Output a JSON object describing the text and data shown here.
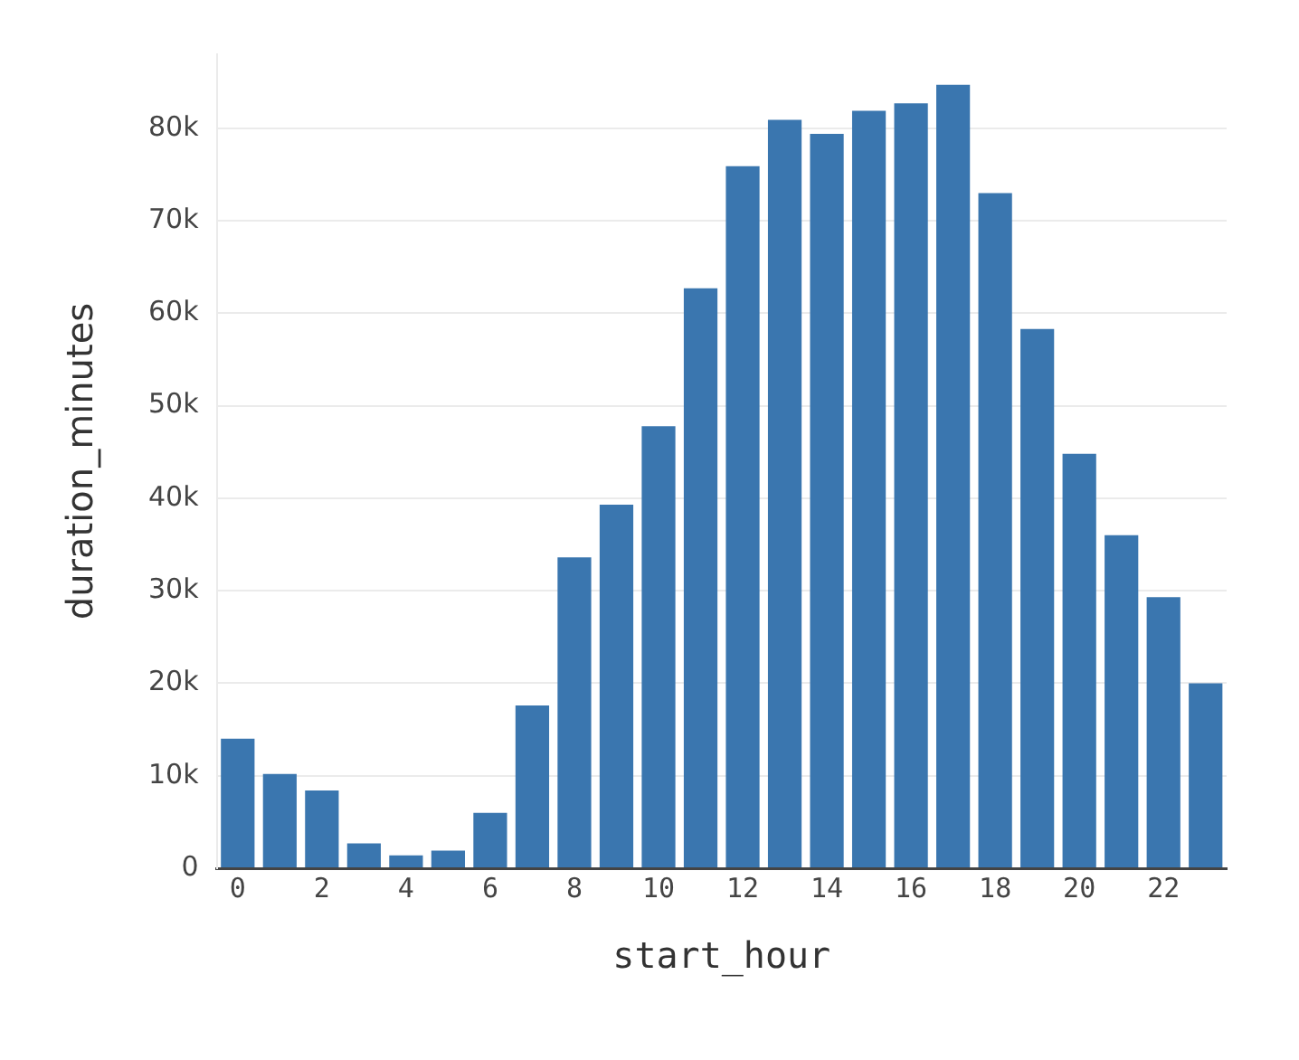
{
  "chart_data": {
    "type": "bar",
    "xlabel": "start_hour",
    "ylabel": "duration_minutes",
    "color": "#3a76af",
    "x": [
      0,
      1,
      2,
      3,
      4,
      5,
      6,
      7,
      8,
      9,
      10,
      11,
      12,
      13,
      14,
      15,
      16,
      17,
      18,
      19,
      20,
      21,
      22,
      23
    ],
    "values": [
      14000,
      10200,
      8400,
      2700,
      1400,
      1900,
      6000,
      17600,
      33600,
      39300,
      47800,
      62700,
      75900,
      80900,
      79400,
      81900,
      82700,
      84700,
      73000,
      58300,
      44800,
      36000,
      29300,
      20000
    ],
    "xlim": [
      -0.5,
      23.5
    ],
    "xticks": [
      0,
      2,
      4,
      6,
      8,
      10,
      12,
      14,
      16,
      18,
      20,
      22
    ],
    "ylim": [
      0,
      88000
    ],
    "yticks": [
      0,
      {
        "value": 10000,
        "label": "10k"
      },
      {
        "value": 20000,
        "label": "20k"
      },
      {
        "value": 30000,
        "label": "30k"
      },
      {
        "value": 40000,
        "label": "40k"
      },
      {
        "value": 50000,
        "label": "50k"
      },
      {
        "value": 60000,
        "label": "60k"
      },
      {
        "value": 70000,
        "label": "70k"
      },
      {
        "value": 80000,
        "label": "80k"
      }
    ],
    "grid": "y",
    "legend": false
  }
}
